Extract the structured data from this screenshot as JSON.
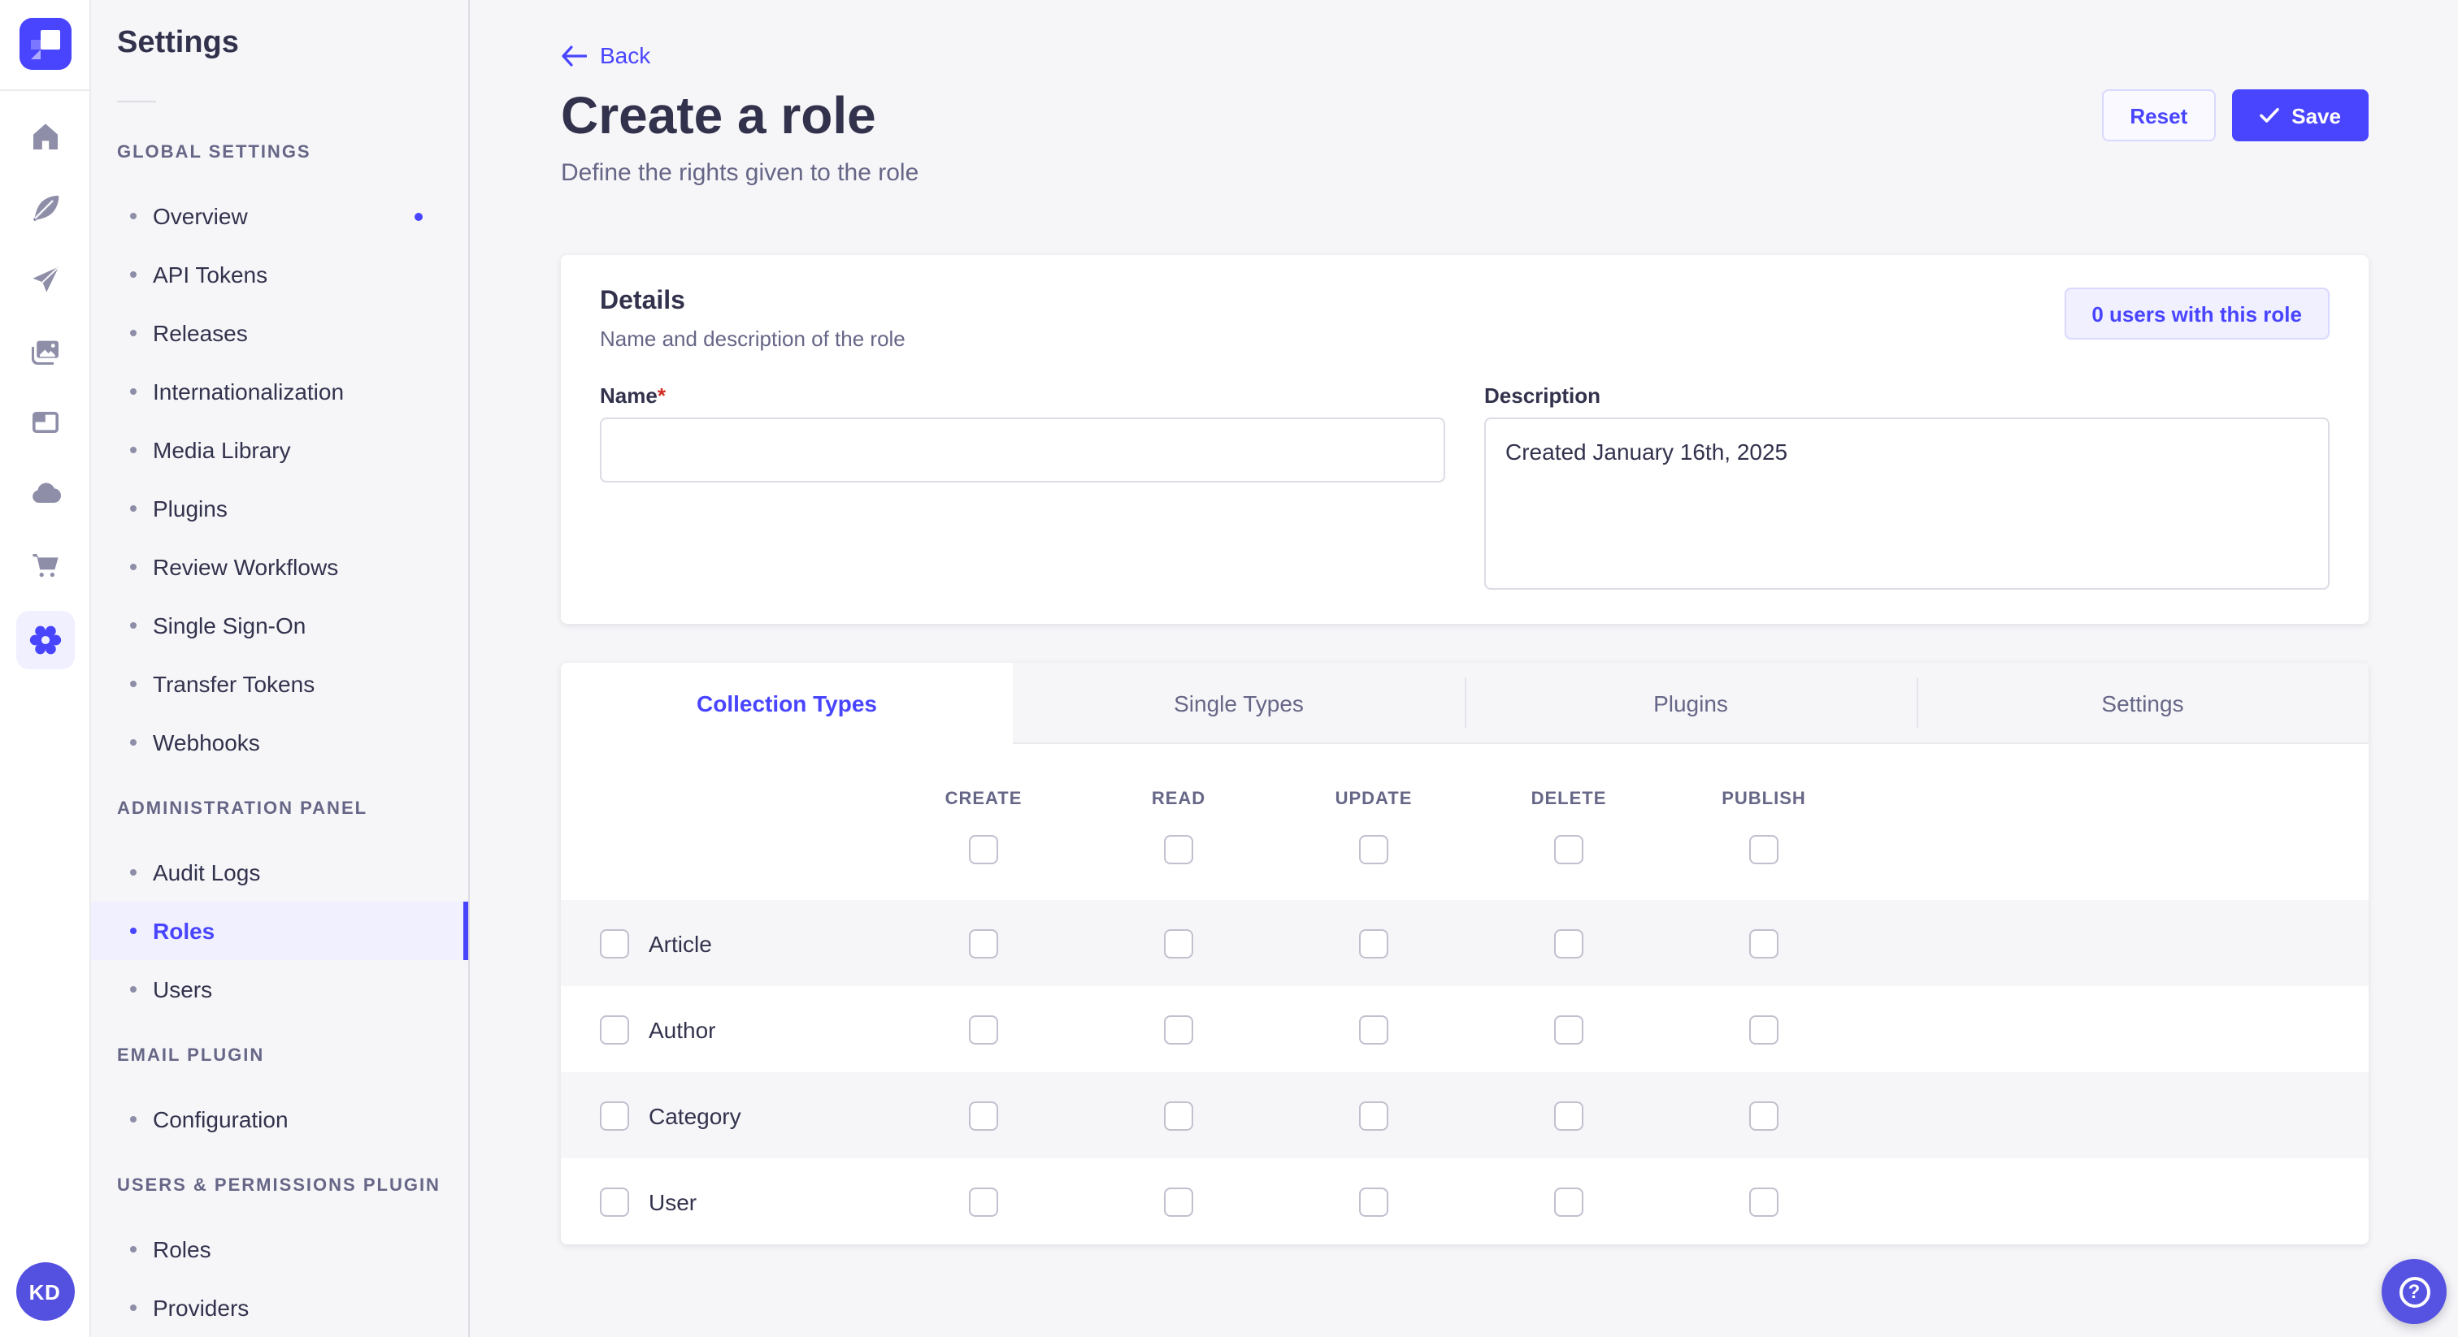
{
  "accent": "#4945ff",
  "rail": {
    "icons": [
      "home",
      "content-manager",
      "releases",
      "media-library",
      "content-type-builder",
      "cloud",
      "marketplace",
      "settings"
    ],
    "active_icon": "settings",
    "avatar_initials": "KD"
  },
  "sidebar": {
    "title": "Settings",
    "sections": [
      {
        "label": "GLOBAL SETTINGS",
        "items": [
          {
            "label": "Overview",
            "notification": true
          },
          {
            "label": "API Tokens"
          },
          {
            "label": "Releases"
          },
          {
            "label": "Internationalization"
          },
          {
            "label": "Media Library"
          },
          {
            "label": "Plugins"
          },
          {
            "label": "Review Workflows"
          },
          {
            "label": "Single Sign-On"
          },
          {
            "label": "Transfer Tokens"
          },
          {
            "label": "Webhooks"
          }
        ]
      },
      {
        "label": "ADMINISTRATION PANEL",
        "items": [
          {
            "label": "Audit Logs"
          },
          {
            "label": "Roles",
            "active": true
          },
          {
            "label": "Users"
          }
        ]
      },
      {
        "label": "EMAIL PLUGIN",
        "items": [
          {
            "label": "Configuration"
          }
        ]
      },
      {
        "label": "USERS & PERMISSIONS PLUGIN",
        "items": [
          {
            "label": "Roles"
          },
          {
            "label": "Providers"
          }
        ]
      }
    ]
  },
  "header": {
    "back_label": "Back",
    "title": "Create a role",
    "subtitle": "Define the rights given to the role",
    "reset_label": "Reset",
    "save_label": "Save"
  },
  "details": {
    "title": "Details",
    "subtitle": "Name and description of the role",
    "users_button_label": "0 users with this role",
    "name_label": "Name",
    "required_mark": "*",
    "name_value": "",
    "description_label": "Description",
    "description_value": "Created January 16th, 2025"
  },
  "tabs": {
    "items": [
      {
        "label": "Collection Types",
        "active": true
      },
      {
        "label": "Single Types"
      },
      {
        "label": "Plugins"
      },
      {
        "label": "Settings"
      }
    ]
  },
  "permissions": {
    "columns": [
      "CREATE",
      "READ",
      "UPDATE",
      "DELETE",
      "PUBLISH"
    ],
    "rows": [
      "Article",
      "Author",
      "Category",
      "User"
    ],
    "all_unchecked": true
  },
  "help": {
    "icon": "question-mark"
  }
}
